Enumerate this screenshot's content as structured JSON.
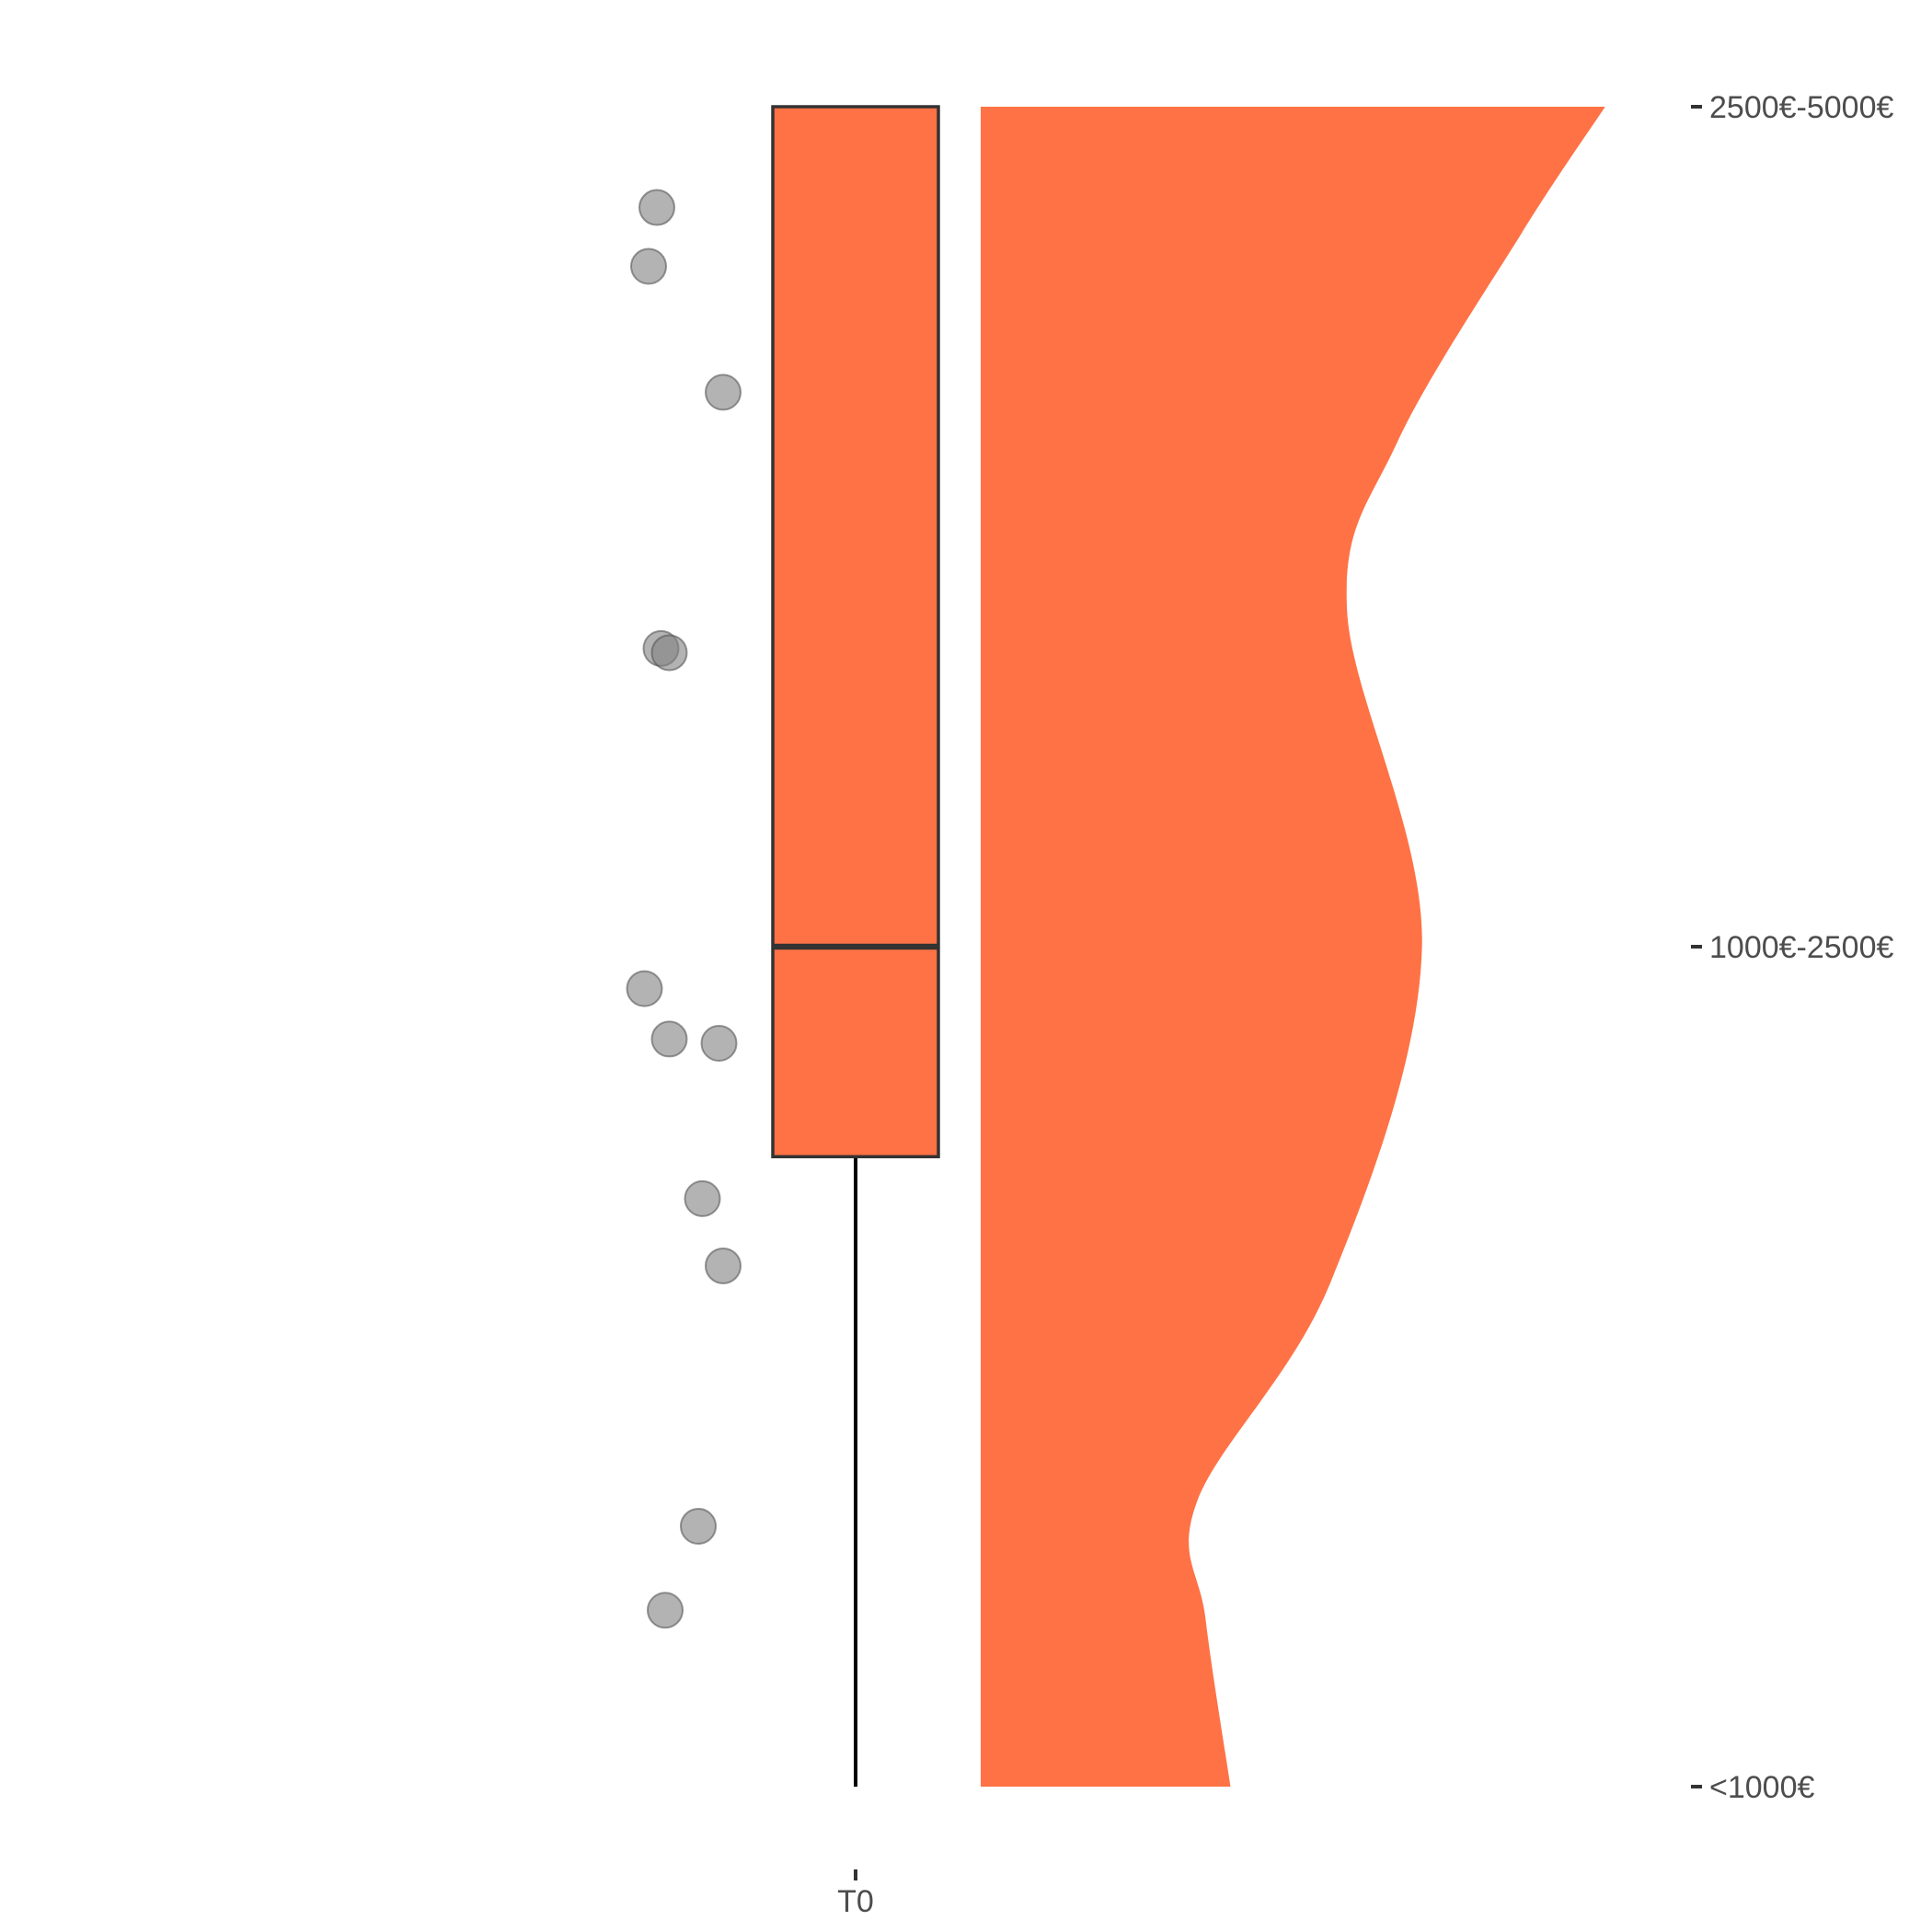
{
  "chart_data": {
    "type": "raincloud",
    "title": "",
    "xlabel": "",
    "ylabel": "",
    "categories": [
      "T0"
    ],
    "y_categories": [
      "<1000€",
      "1000€-2500€",
      "2500€-5000€"
    ],
    "y_values": [
      1,
      2,
      3
    ],
    "ylim": [
      1,
      3
    ],
    "grid": false,
    "legend": "none",
    "colors": {
      "fill": "#FF7245",
      "box_outline": "#333333",
      "points": "#808080",
      "axis_text": "#4d4d4d"
    },
    "boxplot": {
      "category": "T0",
      "min": 1,
      "q1": 1.75,
      "median": 2,
      "q3": 3,
      "max": 3
    },
    "points": [
      {
        "jitter": -0.48,
        "y": 2.88
      },
      {
        "jitter": -0.5,
        "y": 2.81
      },
      {
        "jitter": -0.32,
        "y": 2.66
      },
      {
        "jitter": -0.47,
        "y": 2.355
      },
      {
        "jitter": -0.45,
        "y": 2.35
      },
      {
        "jitter": -0.51,
        "y": 1.95
      },
      {
        "jitter": -0.45,
        "y": 1.89
      },
      {
        "jitter": -0.33,
        "y": 1.885
      },
      {
        "jitter": -0.37,
        "y": 1.7
      },
      {
        "jitter": -0.32,
        "y": 1.62
      },
      {
        "jitter": -0.38,
        "y": 1.31
      },
      {
        "jitter": -0.46,
        "y": 1.21
      }
    ],
    "density": {
      "y": [
        1.0,
        1.2,
        1.34,
        1.6,
        2.0,
        2.4,
        2.6,
        2.85,
        3.0
      ],
      "width": [
        0.3,
        0.27,
        0.26,
        0.42,
        0.53,
        0.44,
        0.5,
        0.65,
        0.75
      ]
    }
  }
}
